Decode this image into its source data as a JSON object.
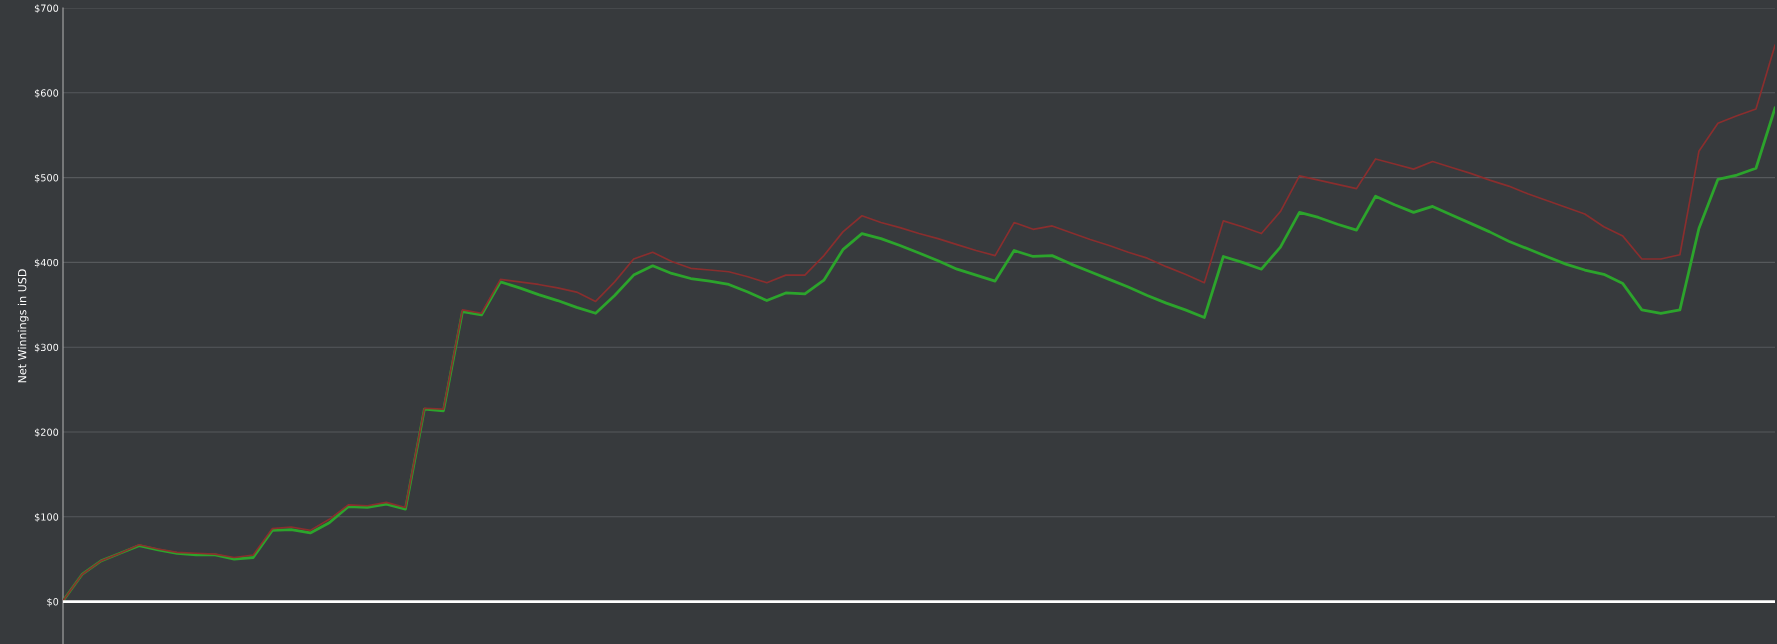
{
  "chart_data": {
    "type": "line",
    "ylabel": "Net Winnings in USD",
    "categories": [
      null,
      null,
      null,
      null,
      null,
      null,
      null,
      null,
      null,
      null,
      null,
      null,
      null,
      null,
      null,
      null,
      null,
      null,
      null,
      null,
      null,
      null,
      null,
      null,
      null,
      null,
      null,
      null,
      null,
      null,
      null,
      null,
      null,
      null,
      null,
      null,
      null,
      null,
      null,
      null,
      null,
      null,
      null,
      null,
      null,
      null,
      null,
      null,
      null,
      null,
      null,
      null,
      null,
      null,
      null,
      null,
      null,
      null,
      null,
      null,
      null,
      null,
      null,
      null,
      null,
      null,
      null,
      null,
      null,
      null,
      null,
      null,
      null,
      null,
      null,
      null,
      null,
      null,
      null,
      null,
      null,
      null,
      null,
      null,
      null,
      null,
      null,
      null,
      null,
      null,
      null
    ],
    "series": [
      {
        "color": "#8a2e2e",
        "values": [
          1,
          32,
          48,
          57,
          67,
          62,
          58,
          57,
          56,
          52,
          55,
          86,
          88,
          84,
          97,
          114,
          113,
          117,
          111,
          228,
          227,
          344,
          340,
          380,
          377,
          374,
          370,
          365,
          354,
          377,
          404,
          412,
          401,
          393,
          391,
          389,
          383,
          376,
          385,
          385,
          408,
          436,
          455,
          447,
          441,
          434,
          428,
          421,
          414,
          408,
          447,
          439,
          443,
          435,
          427,
          420,
          412,
          405,
          395,
          386,
          376,
          449,
          442,
          434,
          460,
          502,
          497,
          492,
          487,
          522,
          516,
          510,
          519,
          512,
          505,
          497,
          490,
          481,
          473,
          465,
          457,
          442,
          431,
          404,
          404,
          409,
          531,
          564,
          573,
          581,
          656
        ]
      },
      {
        "color": "#2ca42c",
        "values": [
          1,
          32,
          48,
          57,
          66,
          61,
          57,
          55,
          55,
          50,
          52,
          84,
          85,
          81,
          93,
          112,
          111,
          115,
          109,
          227,
          225,
          342,
          338,
          377,
          370,
          362,
          355,
          347,
          340,
          361,
          385,
          396,
          387,
          381,
          378,
          374,
          365,
          355,
          364,
          363,
          379,
          415,
          434,
          428,
          420,
          411,
          402,
          392,
          385,
          378,
          414,
          407,
          408,
          398,
          389,
          380,
          371,
          361,
          352,
          344,
          335,
          407,
          400,
          392,
          418,
          459,
          453,
          445,
          438,
          478,
          468,
          459,
          466,
          456,
          446,
          436,
          425,
          416,
          407,
          398,
          391,
          386,
          375,
          344,
          340,
          344,
          440,
          498,
          503,
          511,
          582
        ]
      }
    ],
    "ylim": [
      -50,
      700
    ],
    "yticks": [
      {
        "value": 0,
        "label": "$0"
      },
      {
        "value": 100,
        "label": "$100"
      },
      {
        "value": 200,
        "label": "$200"
      },
      {
        "value": 300,
        "label": "$300"
      },
      {
        "value": 400,
        "label": "$400"
      },
      {
        "value": 500,
        "label": "$500"
      },
      {
        "value": 600,
        "label": "$600"
      },
      {
        "value": 700,
        "label": "$700"
      }
    ],
    "ref_lines": [
      {
        "axis": "y",
        "value": 0,
        "color": "#ffffff"
      }
    ],
    "grid": "y",
    "legend": false,
    "marker": "none",
    "line_style": "solid"
  }
}
